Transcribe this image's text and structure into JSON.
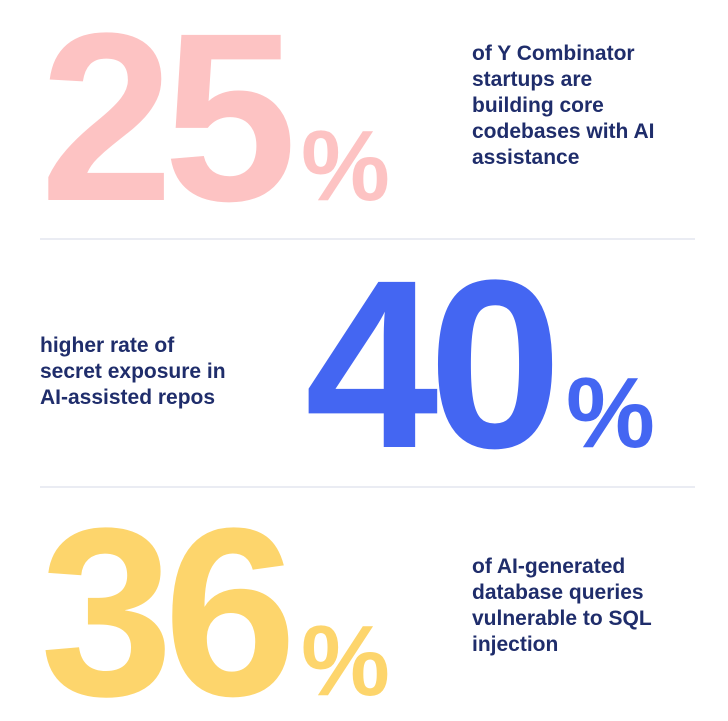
{
  "stats": [
    {
      "number": 25,
      "unit": "%",
      "color": "#fdc3c3",
      "lines": [
        "of Y Combinator",
        "startups are",
        "building core",
        "codebases with AI",
        "assistance"
      ]
    },
    {
      "number": 40,
      "unit": "%",
      "color": "#4466f2",
      "lines": [
        "higher rate of",
        "secret exposure in",
        "AI-assisted repos"
      ]
    },
    {
      "number": 36,
      "unit": "%",
      "color": "#fdd56c",
      "lines": [
        "of AI-generated",
        "database queries",
        "vulnerable to SQL",
        "injection"
      ]
    }
  ]
}
